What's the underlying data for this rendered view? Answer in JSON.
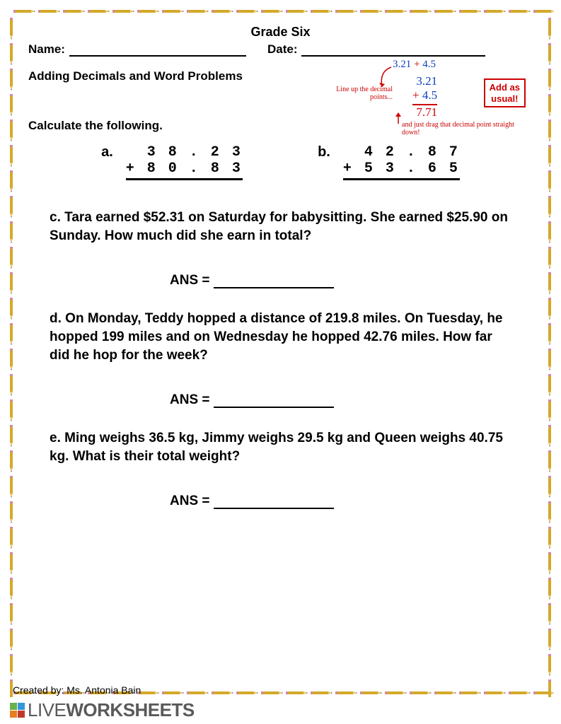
{
  "title": "Grade Six",
  "name_label": "Name:",
  "date_label": "Date:",
  "subtitle": "Adding Decimals and Word Problems",
  "instruction": "Calculate the following.",
  "example": {
    "eq_a": "3.21",
    "eq_plus": "+",
    "eq_b": "4.5",
    "stack_a": "3.21",
    "stack_b": "4.5",
    "result": "7.71",
    "note1": "Line up the decimal points...",
    "addbox_l1": "Add as",
    "addbox_l2": "usual!",
    "note2": "and just drag that decimal point straight down!",
    "color_blue": "#1040c0",
    "color_red": "#cc0000"
  },
  "calc_a": {
    "label": "a.",
    "top": "3 8 . 2 3",
    "bot": "+ 8 0 . 8 3"
  },
  "calc_b": {
    "label": "b.",
    "top": "4 2 . 8 7",
    "bot": "+ 5 3 . 6 5"
  },
  "prob_c": "c.  Tara earned $52.31 on Saturday for babysitting. She earned $25.90 on Sunday. How much did she earn in total?",
  "prob_d": "d. On Monday, Teddy hopped a distance of 219.8 miles. On Tuesday, he hopped 199 miles and on Wednesday he hopped 42.76 miles. How far did he hop for the week?",
  "prob_e": "e.  Ming weighs 36.5 kg, Jimmy weighs 29.5 kg and Queen weighs 40.75 kg. What is their total weight?",
  "ans_label": "ANS =",
  "credit": "Created by: Ms. Antonia Bain",
  "watermark_thin": "LIVE",
  "watermark_bold": "WORKSHEETS",
  "pencil_color": "#d4a929",
  "wm_colors": {
    "g": "#6ab04c",
    "b": "#3498db",
    "o": "#e67e22",
    "r": "#c0392b"
  }
}
